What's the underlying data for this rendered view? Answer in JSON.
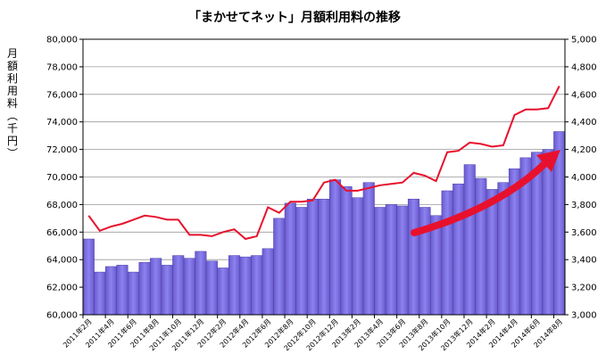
{
  "chart_data": {
    "type": "bar",
    "title": "「まかせてネット」月額利用料の推移",
    "ylabel": "月額利用料（千円）",
    "x_tick_labels": [
      "2011年2月",
      "2011年4月",
      "2011年6月",
      "2011年8月",
      "2011年10月",
      "2011年12月",
      "2012年2月",
      "2012年4月",
      "2012年6月",
      "2012年8月",
      "2012年10月",
      "2012年12月",
      "2013年2月",
      "2013年4月",
      "2013年6月",
      "2013年8月",
      "2013年10月",
      "2013年12月",
      "2014年2月",
      "2014年4月",
      "2014年6月",
      "2014年8月"
    ],
    "y_left": {
      "min": 60000,
      "max": 80000,
      "step": 2000,
      "tick_labels": [
        "60,000",
        "62,000",
        "64,000",
        "66,000",
        "68,000",
        "70,000",
        "72,000",
        "74,000",
        "76,000",
        "78,000",
        "80,000"
      ]
    },
    "y_right": {
      "min": 3000,
      "max": 5000,
      "step": 200,
      "tick_labels": [
        "3,000",
        "3,200",
        "3,400",
        "3,600",
        "3,800",
        "4,000",
        "4,200",
        "4,400",
        "4,600",
        "4,800",
        "5,000"
      ]
    },
    "grid": true,
    "series": [
      {
        "type": "bar",
        "axis": "left",
        "color": "#7b68ee",
        "values": [
          65500,
          63100,
          63500,
          63600,
          63100,
          63800,
          64100,
          63600,
          64300,
          64100,
          64600,
          63900,
          63400,
          64300,
          64200,
          64300,
          64800,
          67000,
          68100,
          67800,
          68400,
          68400,
          69800,
          69300,
          68500,
          69600,
          67800,
          68000,
          67900,
          68400,
          67800,
          67200,
          69000,
          69500,
          70900,
          69900,
          69100,
          69600,
          70600,
          71400,
          71800,
          72000,
          73300
        ]
      },
      {
        "type": "line",
        "axis": "right",
        "color": "#e8112d",
        "values": [
          3720,
          3610,
          3640,
          3660,
          3690,
          3720,
          3710,
          3690,
          3690,
          3580,
          3580,
          3570,
          3600,
          3620,
          3550,
          3570,
          3780,
          3740,
          3820,
          3820,
          3830,
          3960,
          3980,
          3900,
          3900,
          3920,
          3940,
          3950,
          3960,
          4030,
          4010,
          3970,
          4180,
          4190,
          4250,
          4240,
          4220,
          4230,
          4450,
          4490,
          4490,
          4500,
          4660
        ]
      }
    ],
    "annotation": {
      "type": "arrow",
      "color": "#e8112d",
      "description": "upward trend"
    }
  }
}
